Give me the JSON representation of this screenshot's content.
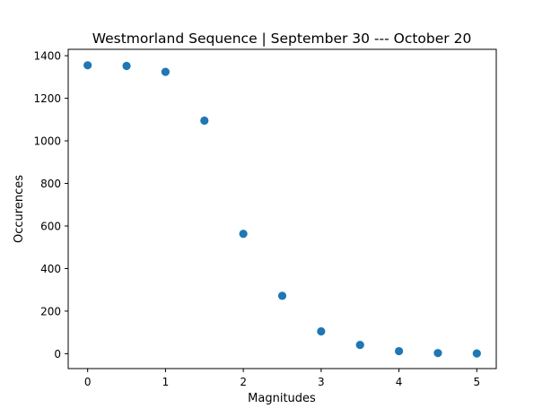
{
  "chart_data": {
    "type": "scatter",
    "title": "Westmorland Sequence | September 30 --- October 20",
    "xlabel": "Magnitudes",
    "ylabel": "Occurences",
    "xlim": [
      -0.25,
      5.25
    ],
    "ylim": [
      -70,
      1430
    ],
    "xticks": [
      0,
      1,
      2,
      3,
      4,
      5
    ],
    "yticks": [
      0,
      200,
      400,
      600,
      800,
      1000,
      1200,
      1400
    ],
    "grid": false,
    "legend": "none",
    "marker_color": "#1f77b4",
    "points": [
      {
        "x": 0.0,
        "y": 1355
      },
      {
        "x": 0.5,
        "y": 1352
      },
      {
        "x": 1.0,
        "y": 1324
      },
      {
        "x": 1.5,
        "y": 1095
      },
      {
        "x": 2.0,
        "y": 563
      },
      {
        "x": 2.5,
        "y": 272
      },
      {
        "x": 3.0,
        "y": 105
      },
      {
        "x": 3.5,
        "y": 41
      },
      {
        "x": 4.0,
        "y": 12
      },
      {
        "x": 4.5,
        "y": 3
      },
      {
        "x": 5.0,
        "y": 1
      }
    ]
  }
}
